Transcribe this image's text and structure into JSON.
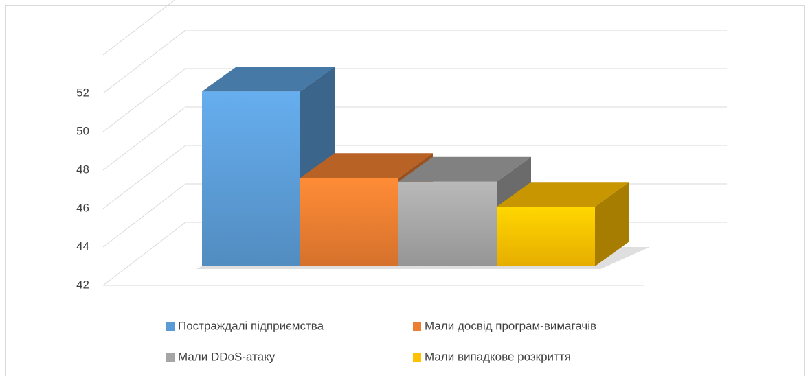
{
  "chart_data": {
    "type": "bar",
    "categories": [
      "Постраждалі підприємства",
      "Мали досвід програм-вимагачів",
      "Мали DDoS-атаку",
      "Мали випадкове розкриття"
    ],
    "values": [
      51.1,
      46.6,
      46.4,
      45.1
    ],
    "colors": [
      "#5b9bd5",
      "#ed7d31",
      "#a5a5a5",
      "#ffc000"
    ],
    "ylim": [
      42,
      54
    ],
    "yticks": [
      42,
      44,
      46,
      48,
      50,
      52
    ],
    "grid": true,
    "legend": "bottom"
  }
}
